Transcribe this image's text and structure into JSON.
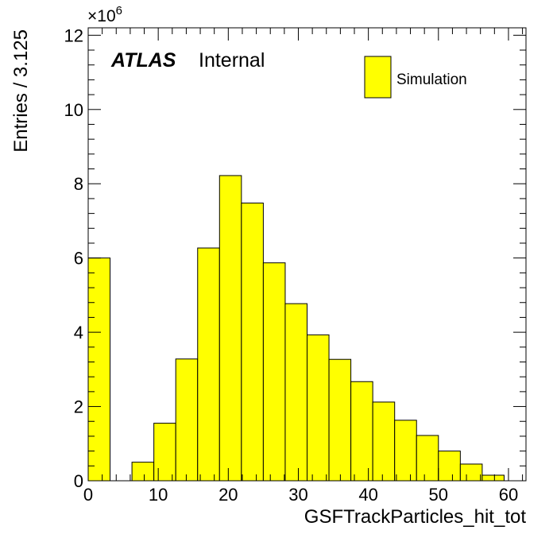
{
  "chart_data": {
    "type": "bar",
    "subtype": "histogram",
    "xlabel": "GSFTrackParticles_hit_tot",
    "ylabel": "Entries / 3.125",
    "y_multiplier": "×10",
    "y_multiplier_exponent": "6",
    "xlim": [
      0,
      62.5
    ],
    "ylim": [
      0,
      12.2
    ],
    "x_ticks": [
      0,
      10,
      20,
      30,
      40,
      50,
      60
    ],
    "y_ticks": [
      0,
      2,
      4,
      6,
      8,
      10,
      12
    ],
    "bin_width": 3.125,
    "bins": [
      {
        "x_low": 0,
        "x_high": 3.125,
        "value": 6.0
      },
      {
        "x_low": 3.125,
        "x_high": 6.25,
        "value": 0
      },
      {
        "x_low": 6.25,
        "x_high": 9.375,
        "value": 0.5
      },
      {
        "x_low": 9.375,
        "x_high": 12.5,
        "value": 1.55
      },
      {
        "x_low": 12.5,
        "x_high": 15.625,
        "value": 3.28
      },
      {
        "x_low": 15.625,
        "x_high": 18.75,
        "value": 6.27
      },
      {
        "x_low": 18.75,
        "x_high": 21.875,
        "value": 8.22
      },
      {
        "x_low": 21.875,
        "x_high": 25.0,
        "value": 7.48
      },
      {
        "x_low": 25.0,
        "x_high": 28.125,
        "value": 5.87
      },
      {
        "x_low": 28.125,
        "x_high": 31.25,
        "value": 4.77
      },
      {
        "x_low": 31.25,
        "x_high": 34.375,
        "value": 3.93
      },
      {
        "x_low": 34.375,
        "x_high": 37.5,
        "value": 3.27
      },
      {
        "x_low": 37.5,
        "x_high": 40.625,
        "value": 2.67
      },
      {
        "x_low": 40.625,
        "x_high": 43.75,
        "value": 2.12
      },
      {
        "x_low": 43.75,
        "x_high": 46.875,
        "value": 1.63
      },
      {
        "x_low": 46.875,
        "x_high": 50.0,
        "value": 1.22
      },
      {
        "x_low": 50.0,
        "x_high": 53.125,
        "value": 0.8
      },
      {
        "x_low": 53.125,
        "x_high": 56.25,
        "value": 0.45
      },
      {
        "x_low": 56.25,
        "x_high": 59.375,
        "value": 0.15
      }
    ],
    "series": [
      {
        "name": "Simulation",
        "color": "#ffff00",
        "edge_color": "#000000"
      }
    ],
    "legend": {
      "position": "top-right",
      "entries": [
        "Simulation"
      ]
    },
    "annotation": {
      "bold_italic": "ATLAS",
      "text": "Internal"
    },
    "grid": false
  }
}
